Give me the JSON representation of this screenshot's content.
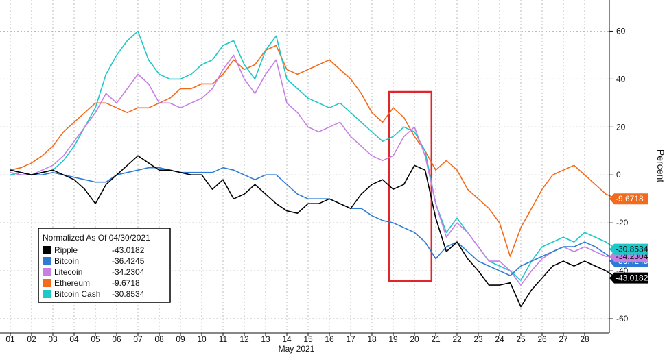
{
  "chart_data": {
    "type": "line",
    "xlabel": "May 2021",
    "ylabel": "Percent",
    "x_ticks": [
      "01",
      "02",
      "03",
      "04",
      "05",
      "06",
      "07",
      "08",
      "09",
      "10",
      "11",
      "12",
      "13",
      "14",
      "15",
      "16",
      "17",
      "18",
      "19",
      "20",
      "21",
      "22",
      "23",
      "24",
      "25",
      "26",
      "27",
      "28"
    ],
    "ylim": [
      -66,
      73
    ],
    "y_ticks": [
      60,
      40,
      20,
      0,
      -20,
      -40,
      -60
    ],
    "grid": true,
    "legend_position": "bottom-left",
    "legend_title": "Normalized As Of 04/30/2021",
    "x": [
      0,
      0.5,
      1,
      1.5,
      2,
      2.5,
      3,
      3.5,
      4,
      4.5,
      5,
      5.5,
      6,
      6.5,
      7,
      7.5,
      8,
      8.5,
      9,
      9.5,
      10,
      10.5,
      11,
      11.5,
      12,
      12.5,
      13,
      13.5,
      14,
      14.5,
      15,
      15.5,
      16,
      16.5,
      17,
      17.5,
      18,
      18.5,
      19,
      19.5,
      20,
      20.5,
      21,
      21.5,
      22,
      22.5,
      23,
      23.5,
      24,
      24.5,
      25,
      25.5,
      26,
      26.5,
      27,
      27.5,
      28,
      28.5
    ],
    "series": [
      {
        "name": "Ripple",
        "last_value": "-43.0182",
        "color": "#000000",
        "values": [
          2,
          1,
          0,
          1,
          2,
          0,
          -2,
          -6,
          -12,
          -4,
          0,
          4,
          8,
          5,
          2,
          2,
          1,
          0,
          0,
          -6,
          -2,
          -10,
          -8,
          -4,
          -8,
          -12,
          -15,
          -16,
          -12,
          -12,
          -10,
          -12,
          -14,
          -8,
          -4,
          -2,
          -6,
          -4,
          4,
          2,
          -18,
          -32,
          -28,
          -35,
          -40,
          -46,
          -46,
          -45,
          -55,
          -48,
          -43,
          -38,
          -36,
          -38,
          -36,
          -38,
          -40,
          -43
        ]
      },
      {
        "name": "Bitcoin",
        "last_value": "-36.4245",
        "color": "#2e7bd6",
        "values": [
          2,
          1,
          0,
          0,
          1,
          0,
          -1,
          -2,
          -3,
          -3,
          0,
          1,
          2,
          3,
          3,
          2,
          1,
          1,
          1,
          1,
          3,
          2,
          0,
          -2,
          0,
          0,
          -4,
          -8,
          -10,
          -10,
          -10,
          -12,
          -14,
          -14,
          -17,
          -19,
          -20,
          -22,
          -24,
          -28,
          -35,
          -30,
          -28,
          -32,
          -36,
          -38,
          -40,
          -42,
          -38,
          -36,
          -34,
          -32,
          -30,
          -30,
          -28,
          -30,
          -33,
          -36
        ]
      },
      {
        "name": "Litecoin",
        "last_value": "-34.2304",
        "color": "#c77fe6",
        "values": [
          1,
          0,
          0,
          2,
          4,
          8,
          14,
          20,
          26,
          34,
          30,
          36,
          42,
          38,
          30,
          30,
          28,
          30,
          32,
          36,
          44,
          50,
          40,
          34,
          42,
          48,
          30,
          26,
          20,
          18,
          20,
          22,
          16,
          12,
          8,
          6,
          8,
          16,
          20,
          8,
          -12,
          -26,
          -20,
          -24,
          -30,
          -36,
          -36,
          -40,
          -46,
          -40,
          -35,
          -32,
          -30,
          -32,
          -30,
          -32,
          -34,
          -34
        ]
      },
      {
        "name": "Ethereum",
        "last_value": "-9.6718",
        "color": "#f26a1b",
        "values": [
          2,
          3,
          5,
          8,
          12,
          18,
          22,
          26,
          30,
          30,
          28,
          26,
          28,
          28,
          30,
          32,
          36,
          36,
          38,
          38,
          42,
          48,
          44,
          46,
          52,
          54,
          44,
          42,
          44,
          46,
          48,
          44,
          40,
          34,
          26,
          22,
          28,
          24,
          16,
          10,
          2,
          6,
          2,
          -6,
          -10,
          -14,
          -20,
          -34,
          -22,
          -14,
          -6,
          0,
          2,
          4,
          0,
          -4,
          -8,
          -10
        ]
      },
      {
        "name": "Bitcoin Cash",
        "last_value": "-30.8534",
        "color": "#1ec8c8",
        "values": [
          0,
          1,
          0,
          1,
          2,
          6,
          12,
          20,
          28,
          42,
          50,
          56,
          60,
          48,
          42,
          40,
          40,
          42,
          46,
          48,
          54,
          56,
          46,
          40,
          52,
          58,
          40,
          36,
          32,
          30,
          28,
          30,
          26,
          22,
          18,
          14,
          16,
          20,
          18,
          10,
          -12,
          -24,
          -18,
          -24,
          -30,
          -36,
          -38,
          -40,
          -44,
          -36,
          -30,
          -28,
          -26,
          -28,
          -24,
          -26,
          -28,
          -31
        ]
      }
    ],
    "highlight_box": {
      "x_start": 17.8,
      "x_end": 19.8
    }
  }
}
